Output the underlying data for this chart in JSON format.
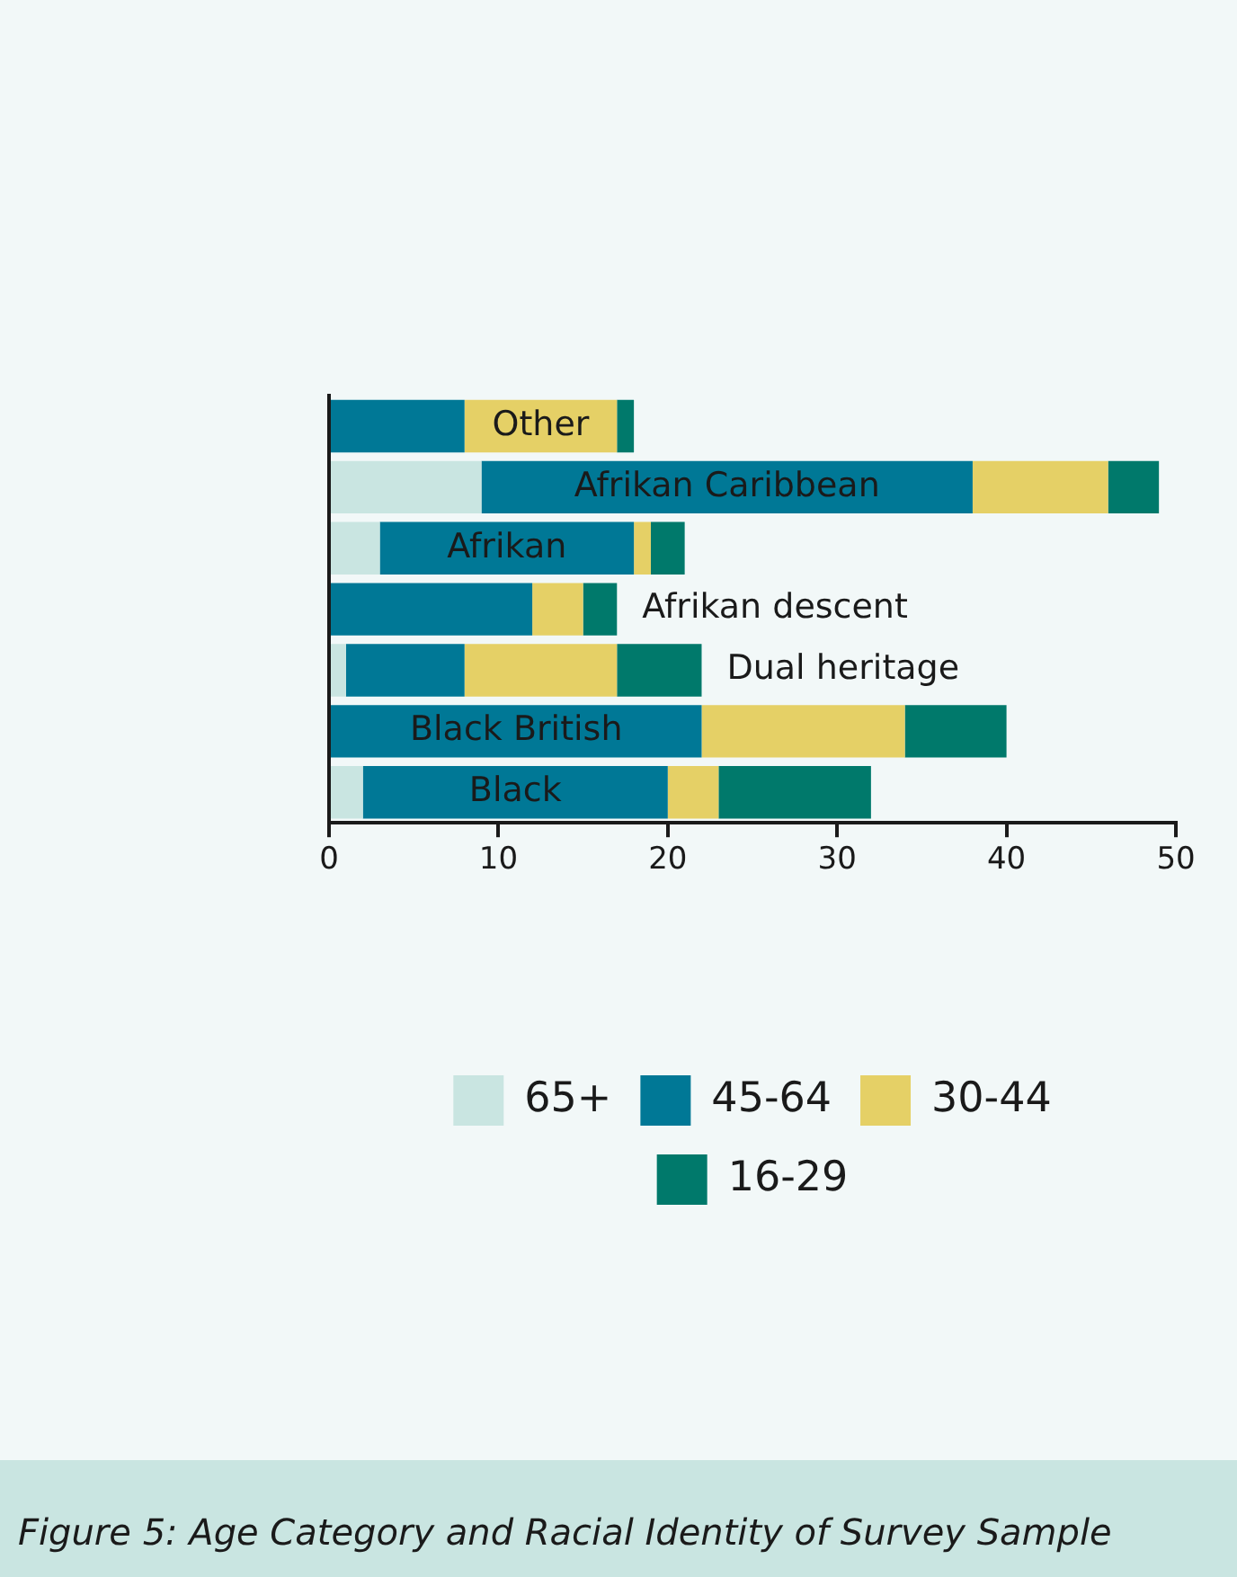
{
  "chart_data": {
    "type": "bar",
    "orientation": "horizontal",
    "stacked": true,
    "categories": [
      "Other",
      "Afrikan Caribbean",
      "Afrikan",
      "Afrikan descent",
      "Dual heritage",
      "Black British",
      "Black"
    ],
    "series": [
      {
        "name": "65+",
        "color": "#c9e5e1",
        "values": [
          0,
          9,
          3,
          0,
          1,
          0,
          2
        ]
      },
      {
        "name": "45-64",
        "color": "#007896",
        "values": [
          8,
          29,
          15,
          12,
          7,
          22,
          18
        ]
      },
      {
        "name": "30-44",
        "color": "#e5d066",
        "values": [
          9,
          8,
          1,
          3,
          9,
          12,
          3
        ]
      },
      {
        "name": "16-29",
        "color": "#00796b",
        "values": [
          1,
          3,
          2,
          2,
          5,
          6,
          9
        ]
      }
    ],
    "xlim": [
      0,
      50
    ],
    "xticks": [
      0,
      10,
      20,
      30,
      40,
      50
    ],
    "grid": false,
    "legend": "bottom",
    "annotations": [
      "Figure 5: Age Category and Racial Identity of Survey Sample"
    ]
  }
}
